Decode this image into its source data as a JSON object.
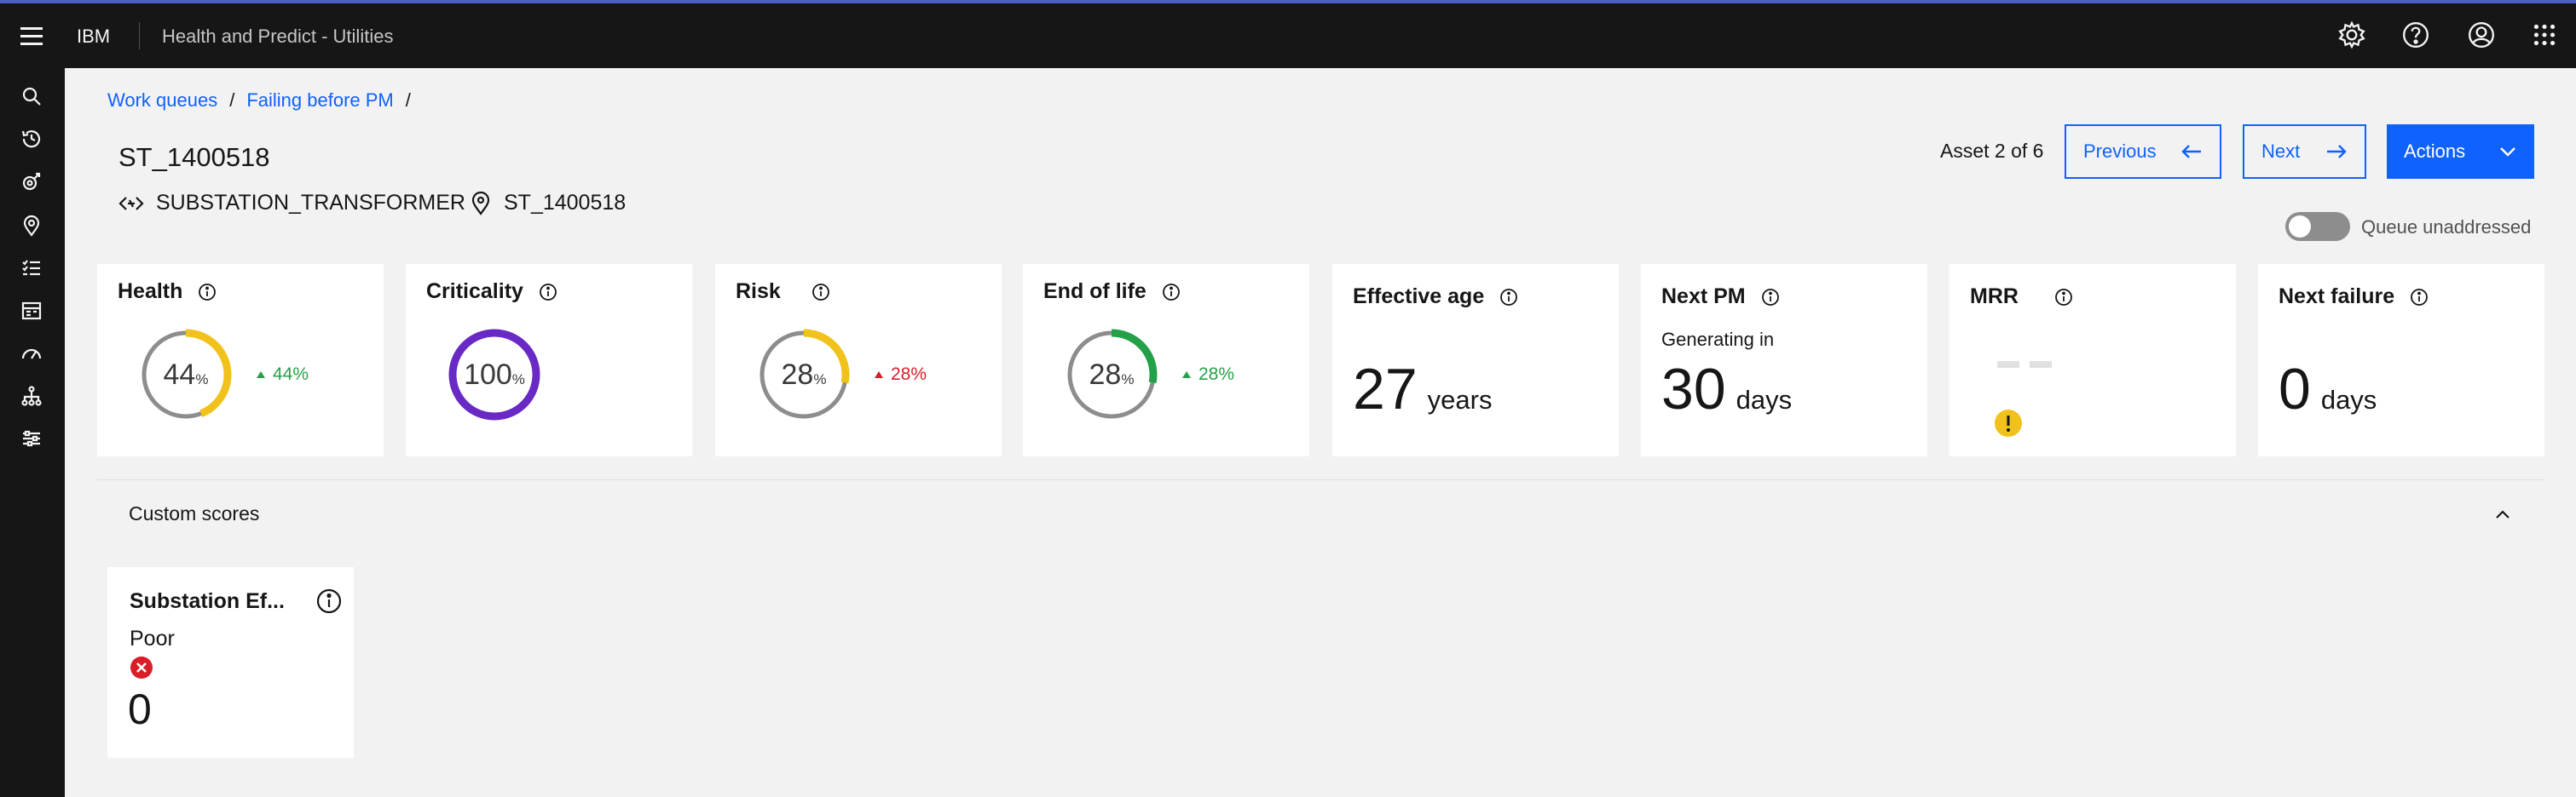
{
  "header": {
    "brand": "IBM",
    "product": "Health and Predict - Utilities"
  },
  "breadcrumb": {
    "items": [
      "Work queues",
      "Failing before PM"
    ],
    "separator": "/"
  },
  "asset": {
    "title": "ST_1400518",
    "type": "SUBSTATION_TRANSFORMER",
    "location": "ST_1400518",
    "position_text": "Asset 2 of 6"
  },
  "buttons": {
    "previous": "Previous",
    "next": "Next",
    "actions": "Actions"
  },
  "toggle": {
    "label": "Queue unaddressed",
    "on": false
  },
  "cards": {
    "health": {
      "title": "Health",
      "value": "44",
      "unit": "%",
      "fraction": 0.44,
      "trend": "44%",
      "trend_direction": "up",
      "color": "#f1c21b"
    },
    "criticality": {
      "title": "Criticality",
      "value": "100",
      "unit": "%",
      "fraction": 1.0,
      "color": "#6929c4"
    },
    "risk": {
      "title": "Risk",
      "value": "28",
      "unit": "%",
      "fraction": 0.28,
      "trend": "28%",
      "trend_direction": "up",
      "color": "#f1c21b"
    },
    "end_of_life": {
      "title": "End of life",
      "value": "28",
      "unit": "%",
      "fraction": 0.28,
      "trend": "28%",
      "trend_direction": "up",
      "color": "#24a148"
    },
    "effective_age": {
      "title": "Effective age",
      "value": "27",
      "unit": "years"
    },
    "next_pm": {
      "title": "Next PM",
      "subtitle": "Generating in",
      "value": "30",
      "unit": "days"
    },
    "mrr": {
      "title": "MRR",
      "value": "--"
    },
    "next_failure": {
      "title": "Next failure",
      "value": "0",
      "unit": "days"
    }
  },
  "custom_scores": {
    "title": "Custom scores",
    "items": [
      {
        "title": "Substation Ef...",
        "status": "Poor",
        "value": "0"
      }
    ]
  },
  "colors": {
    "accent": "#0f62fe",
    "header_bg": "#161616",
    "trend_green": "#24a148",
    "trend_red": "#da1e28",
    "warning": "#f1c21b",
    "error": "#da1e28"
  }
}
